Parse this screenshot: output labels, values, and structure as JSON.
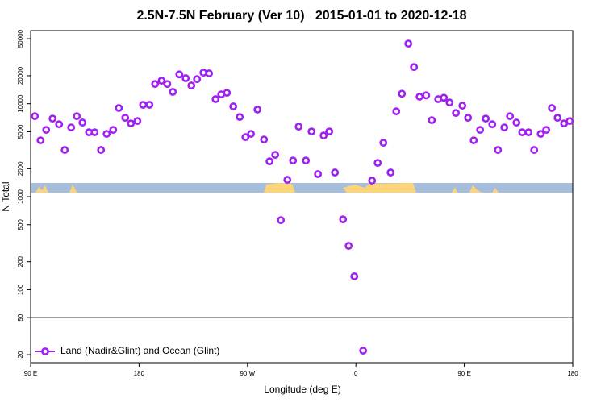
{
  "chart_data": {
    "type": "scatter",
    "title": "2.5N-7.5N February (Ver 10)   2015-01-01 to 2020-12-18",
    "x_label": "Longitude (deg E)",
    "y_label": "N Total",
    "log_y": true,
    "xlim": [
      -270,
      180
    ],
    "ylim": [
      16.4,
      61100
    ],
    "xticks": [
      {
        "value": -270,
        "label": "90 E"
      },
      {
        "value": -180,
        "label": "180"
      },
      {
        "value": -90,
        "label": "90 W"
      },
      0,
      {
        "value": 90,
        "label": "90 E"
      },
      180
    ],
    "yticks": [
      20,
      50,
      100,
      200,
      500,
      1000,
      2000,
      5000,
      10000,
      20000,
      50000
    ],
    "reference_line": 50,
    "legend": "lower left",
    "series": [
      {
        "name": "Land (Nadir&Glint) and Ocean (Glint)",
        "color": "#a020f0",
        "x": [
          -266.5,
          -261.8,
          -257.1,
          -251.8,
          -246.4,
          -241.7,
          -236.4,
          -231.7,
          -227.0,
          -221.6,
          -216.9,
          -211.6,
          -206.9,
          -201.5,
          -196.8,
          -191.5,
          -186.8,
          -181.4,
          -176.7,
          -171.4,
          -166.7,
          -161.3,
          -156.6,
          -152.0,
          -146.6,
          -141.3,
          -136.6,
          -131.9,
          -126.6,
          -121.9,
          -116.5,
          -111.8,
          -107.1,
          -101.8,
          -96.4,
          -91.7,
          -87.1,
          -81.7,
          -76.3,
          -71.7,
          -67.0,
          -62.3,
          -56.9,
          -52.2,
          -47.5,
          -41.5,
          -36.8,
          -31.5,
          -26.8,
          -22.1,
          -17.4,
          -10.7,
          -6.0,
          -1.3,
          6.0,
          13.4,
          18.1,
          22.8,
          28.8,
          33.5,
          38.2,
          43.5,
          48.2,
          52.9,
          58.3,
          63.0,
          68.3,
          73.0,
          77.7,
          83.0,
          88.4,
          93.1,
          97.8,
          103.1,
          107.8,
          113.2,
          117.9,
          123.2,
          127.9,
          133.3,
          138.0,
          143.3,
          148.0,
          153.4,
          158.0,
          162.7,
          167.4,
          172.8,
          177.5
        ],
        "values": [
          7350,
          4040,
          5230,
          6920,
          6010,
          3180,
          5560,
          7350,
          6270,
          4930,
          4930,
          3180,
          4740,
          5230,
          8990,
          7060,
          6140,
          6520,
          9730,
          9730,
          16300,
          17700,
          16300,
          13400,
          20700,
          18800,
          15700,
          18400,
          21600,
          21200,
          11200,
          12600,
          13100,
          9350,
          7200,
          4370,
          4740,
          8650,
          4120,
          2400,
          2820,
          560,
          1520,
          2450,
          5670,
          2450,
          5030,
          1750,
          4550,
          5030,
          1820,
          571,
          296,
          139,
          22.1,
          1490,
          2310,
          3800,
          1820,
          8280,
          12800,
          44300,
          24800,
          11900,
          12300,
          6650,
          11200,
          11600,
          10300,
          7960,
          9530,
          7060,
          4040,
          5230,
          6920,
          6010,
          3180,
          5560,
          7350,
          6270,
          4930,
          4930,
          3180,
          4740,
          5230,
          8990,
          7060,
          6140,
          6520
        ]
      }
    ]
  }
}
